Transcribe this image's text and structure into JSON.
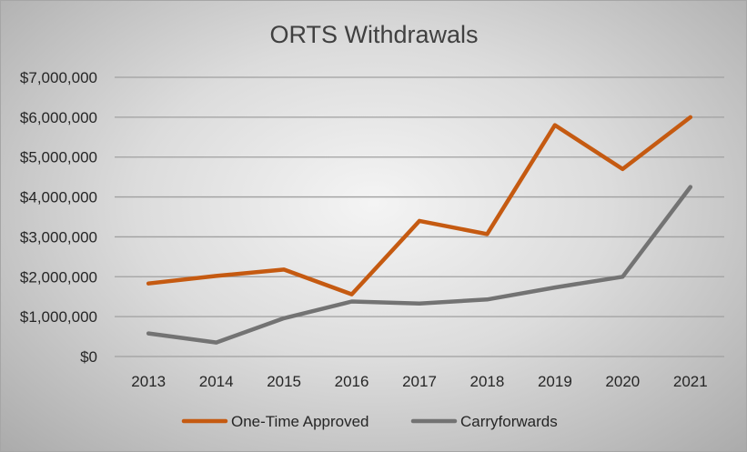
{
  "chart_data": {
    "type": "line",
    "title": "ORTS Withdrawals",
    "xlabel": "",
    "ylabel": "",
    "x": [
      "2013",
      "2014",
      "2015",
      "2016",
      "2017",
      "2018",
      "2019",
      "2020",
      "2021"
    ],
    "y_ticks": [
      "$0",
      "$1,000,000",
      "$2,000,000",
      "$3,000,000",
      "$4,000,000",
      "$5,000,000",
      "$6,000,000",
      "$7,000,000"
    ],
    "ylim": [
      0,
      7000000
    ],
    "grid": true,
    "legend": "bottom",
    "series": [
      {
        "name": "One-Time Approved",
        "color": "#c55a11",
        "values": [
          1830000,
          2020000,
          2180000,
          1560000,
          3400000,
          3070000,
          5800000,
          4700000,
          6000000
        ]
      },
      {
        "name": "Carryforwards",
        "color": "#737373",
        "values": [
          580000,
          350000,
          960000,
          1380000,
          1330000,
          1430000,
          1730000,
          2000000,
          4250000
        ]
      }
    ]
  }
}
